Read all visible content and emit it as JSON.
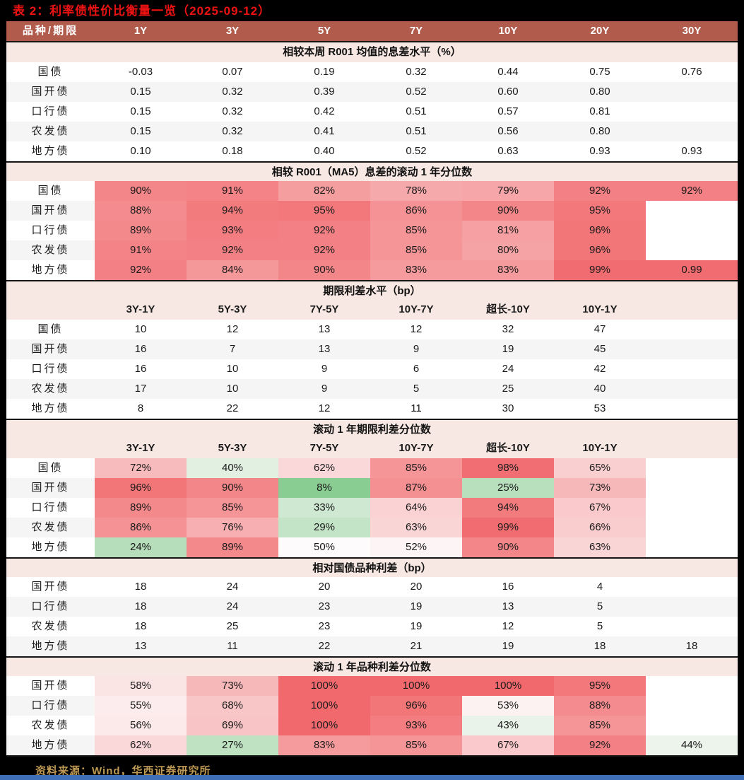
{
  "title": "表 2：利率债性价比衡量一览（2025-09-12）",
  "source": "资料来源：Wind，华西证券研究所",
  "colors": {
    "header_bg": "#B15B4C",
    "section_bg": "#F8E8E3",
    "title_red": "#ED1313",
    "source_gold": "#BE9A55",
    "stripe_gray": "#F5F5F5",
    "heat_red_max": "#F1696D",
    "heat_green_max": "#74C47F",
    "heat_mid_white": "#FDFBFB",
    "bottom_bar_blue": "#3E6FB7"
  },
  "header": {
    "label": "品种/期限",
    "columns": [
      "1Y",
      "3Y",
      "5Y",
      "7Y",
      "10Y",
      "20Y",
      "30Y"
    ]
  },
  "spread_columns": [
    "3Y-1Y",
    "5Y-3Y",
    "7Y-5Y",
    "10Y-7Y",
    "超长-10Y",
    "10Y-1Y",
    ""
  ],
  "sections": [
    {
      "title": "相较本周 R001 均值的息差水平（%）",
      "kind": "plain",
      "subheader": null,
      "rows": [
        {
          "label": "国债",
          "values": [
            "-0.03",
            "0.07",
            "0.19",
            "0.32",
            "0.44",
            "0.75",
            "0.76"
          ]
        },
        {
          "label": "国开债",
          "values": [
            "0.15",
            "0.32",
            "0.39",
            "0.52",
            "0.60",
            "0.80",
            ""
          ]
        },
        {
          "label": "口行债",
          "values": [
            "0.15",
            "0.32",
            "0.42",
            "0.51",
            "0.57",
            "0.81",
            ""
          ]
        },
        {
          "label": "农发债",
          "values": [
            "0.15",
            "0.32",
            "0.41",
            "0.51",
            "0.56",
            "0.80",
            ""
          ]
        },
        {
          "label": "地方债",
          "values": [
            "0.10",
            "0.18",
            "0.40",
            "0.52",
            "0.63",
            "0.93",
            "0.93"
          ]
        }
      ]
    },
    {
      "title": "相较 R001（MA5）息差的滚动 1 年分位数",
      "kind": "heat",
      "subheader": null,
      "rows": [
        {
          "label": "国债",
          "values": [
            "90%",
            "91%",
            "82%",
            "78%",
            "79%",
            "92%",
            "92%"
          ]
        },
        {
          "label": "国开债",
          "values": [
            "88%",
            "94%",
            "95%",
            "86%",
            "90%",
            "95%",
            ""
          ]
        },
        {
          "label": "口行债",
          "values": [
            "89%",
            "93%",
            "92%",
            "85%",
            "81%",
            "96%",
            ""
          ]
        },
        {
          "label": "农发债",
          "values": [
            "91%",
            "92%",
            "92%",
            "85%",
            "80%",
            "96%",
            ""
          ]
        },
        {
          "label": "地方债",
          "values": [
            "92%",
            "84%",
            "90%",
            "83%",
            "83%",
            "99%",
            "0.99"
          ]
        }
      ]
    },
    {
      "title": "期限利差水平（bp）",
      "kind": "plain",
      "subheader": true,
      "rows": [
        {
          "label": "国债",
          "values": [
            "10",
            "12",
            "13",
            "12",
            "32",
            "47",
            ""
          ]
        },
        {
          "label": "国开债",
          "values": [
            "16",
            "7",
            "13",
            "9",
            "19",
            "45",
            ""
          ]
        },
        {
          "label": "口行债",
          "values": [
            "16",
            "10",
            "9",
            "6",
            "24",
            "42",
            ""
          ]
        },
        {
          "label": "农发债",
          "values": [
            "17",
            "10",
            "9",
            "5",
            "25",
            "40",
            ""
          ]
        },
        {
          "label": "地方债",
          "values": [
            "8",
            "22",
            "12",
            "11",
            "30",
            "53",
            ""
          ]
        }
      ]
    },
    {
      "title": "滚动 1 年期限利差分位数",
      "kind": "heat",
      "subheader": true,
      "rows": [
        {
          "label": "国债",
          "values": [
            "72%",
            "40%",
            "62%",
            "85%",
            "98%",
            "65%",
            ""
          ]
        },
        {
          "label": "国开债",
          "values": [
            "96%",
            "90%",
            "8%",
            "87%",
            "25%",
            "73%",
            ""
          ]
        },
        {
          "label": "口行债",
          "values": [
            "89%",
            "85%",
            "33%",
            "64%",
            "94%",
            "67%",
            ""
          ]
        },
        {
          "label": "农发债",
          "values": [
            "86%",
            "76%",
            "29%",
            "63%",
            "99%",
            "66%",
            ""
          ]
        },
        {
          "label": "地方债",
          "values": [
            "24%",
            "89%",
            "50%",
            "52%",
            "90%",
            "63%",
            ""
          ]
        }
      ]
    },
    {
      "title": "相对国债品种利差（bp）",
      "kind": "plain",
      "subheader": null,
      "rows": [
        {
          "label": "国开债",
          "values": [
            "18",
            "24",
            "20",
            "20",
            "16",
            "4",
            ""
          ]
        },
        {
          "label": "口行债",
          "values": [
            "18",
            "24",
            "23",
            "19",
            "13",
            "5",
            ""
          ]
        },
        {
          "label": "农发债",
          "values": [
            "18",
            "25",
            "23",
            "19",
            "12",
            "5",
            ""
          ]
        },
        {
          "label": "地方债",
          "values": [
            "13",
            "11",
            "22",
            "21",
            "19",
            "18",
            "18"
          ]
        }
      ]
    },
    {
      "title": "滚动 1 年品种利差分位数",
      "kind": "heat",
      "subheader": null,
      "rows": [
        {
          "label": "国开债",
          "values": [
            "58%",
            "73%",
            "100%",
            "100%",
            "100%",
            "95%",
            ""
          ]
        },
        {
          "label": "口行债",
          "values": [
            "55%",
            "68%",
            "100%",
            "96%",
            "53%",
            "88%",
            ""
          ]
        },
        {
          "label": "农发债",
          "values": [
            "56%",
            "69%",
            "100%",
            "93%",
            "43%",
            "85%",
            ""
          ]
        },
        {
          "label": "地方债",
          "values": [
            "62%",
            "27%",
            "83%",
            "85%",
            "67%",
            "92%",
            "44%"
          ]
        }
      ]
    }
  ]
}
